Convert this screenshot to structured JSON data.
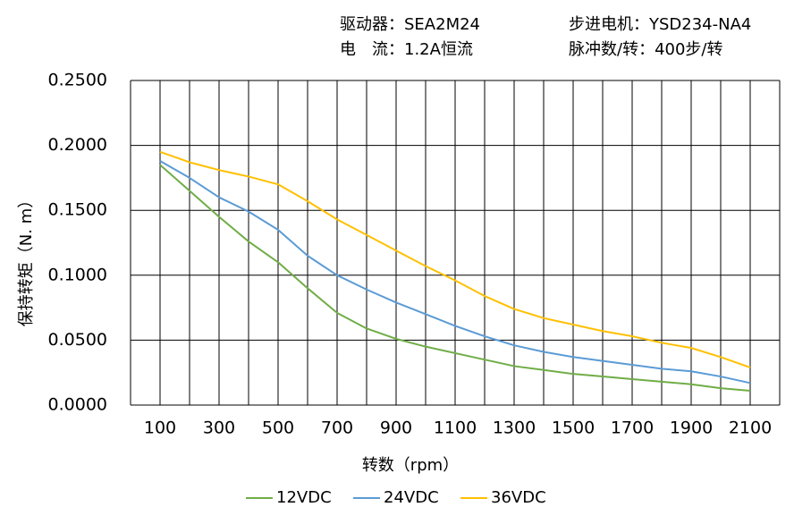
{
  "chart_data": {
    "type": "line",
    "header": [
      "驱动器：SEA2M24",
      "步进电机：YSD234-NA4",
      "电　流：1.2A恒流",
      "脉冲数/转：400步/转"
    ],
    "xlabel": "转数（rpm）",
    "ylabel": "保持转矩（N. m）",
    "x": [
      100,
      200,
      300,
      400,
      500,
      600,
      700,
      800,
      900,
      1000,
      1100,
      1200,
      1300,
      1400,
      1500,
      1600,
      1700,
      1800,
      1900,
      2000,
      2100
    ],
    "series": [
      {
        "name": "12VDC",
        "color": "#70ad47",
        "values": [
          0.185,
          0.165,
          0.145,
          0.126,
          0.11,
          0.09,
          0.071,
          0.059,
          0.051,
          0.045,
          0.04,
          0.035,
          0.03,
          0.027,
          0.024,
          0.022,
          0.02,
          0.018,
          0.016,
          0.013,
          0.011
        ]
      },
      {
        "name": "24VDC",
        "color": "#5b9bd5",
        "values": [
          0.188,
          0.175,
          0.16,
          0.149,
          0.135,
          0.115,
          0.1,
          0.089,
          0.079,
          0.07,
          0.061,
          0.053,
          0.046,
          0.041,
          0.037,
          0.034,
          0.031,
          0.028,
          0.026,
          0.022,
          0.017
        ]
      },
      {
        "name": "36VDC",
        "color": "#ffc000",
        "values": [
          0.195,
          0.187,
          0.181,
          0.176,
          0.17,
          0.157,
          0.143,
          0.131,
          0.119,
          0.107,
          0.096,
          0.084,
          0.074,
          0.067,
          0.062,
          0.057,
          0.053,
          0.048,
          0.044,
          0.037,
          0.029
        ]
      }
    ],
    "xlim": [
      0,
      2200
    ],
    "xticks": [
      100,
      300,
      500,
      700,
      900,
      1100,
      1300,
      1500,
      1700,
      1900,
      2100
    ],
    "xgrid": [
      0,
      100,
      200,
      300,
      400,
      500,
      600,
      700,
      800,
      900,
      1000,
      1100,
      1200,
      1300,
      1400,
      1500,
      1600,
      1700,
      1800,
      1900,
      2000,
      2100,
      2200
    ],
    "ylim": [
      0,
      0.25
    ],
    "yticks": [
      {
        "value": 0,
        "label": "0.0000"
      },
      {
        "value": 0.05,
        "label": "0.0500"
      },
      {
        "value": 0.1,
        "label": "0.1000"
      },
      {
        "value": 0.15,
        "label": "0.1500"
      },
      {
        "value": 0.2,
        "label": "0.2000"
      },
      {
        "value": 0.25,
        "label": "0.2500"
      }
    ],
    "grid": true,
    "legend": "bottom"
  }
}
